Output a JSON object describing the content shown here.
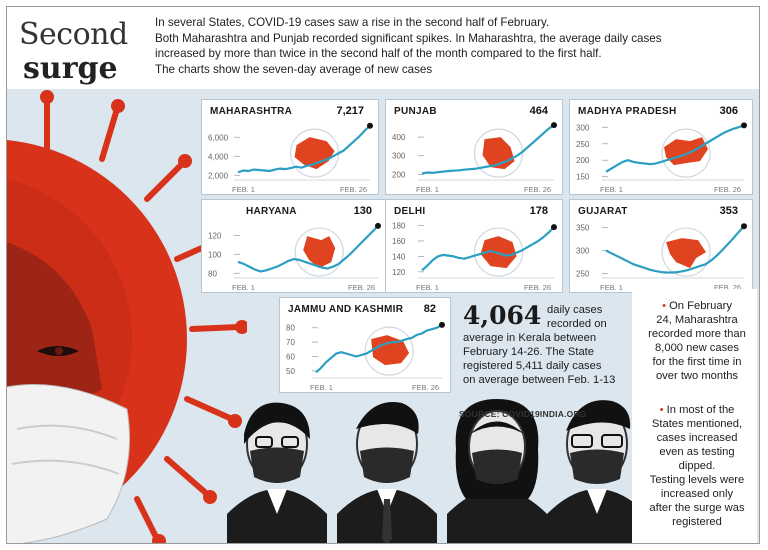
{
  "header": {
    "title_line1": "Second",
    "title_line2": "surge",
    "intro_lines": [
      "In several States, COVID-19 cases saw a rise in the second half of February.",
      "Both Maharashtra and Punjab recorded significant spikes. In Maharashtra, the average daily cases",
      "increased by more than twice in the second half of the month compared to the first half.",
      "The charts show the seven-day average of new cases"
    ]
  },
  "colors": {
    "line": "#2b9fc2",
    "map": "#e0431f",
    "virus": "#d8331a",
    "background": "#dbe6ef",
    "point": "#111111"
  },
  "chart_data": [
    {
      "type": "line",
      "name": "MAHARASHTRA",
      "end_value_label": "7,217",
      "x_start_label": "FEB. 1",
      "x_end_label": "FEB. 26",
      "yticks": [
        "6,000",
        "4,000",
        "2,000"
      ],
      "ytick_values": [
        6000,
        4000,
        2000
      ],
      "ylim": [
        1500,
        7400
      ],
      "values": [
        2300,
        2500,
        2450,
        2600,
        2550,
        2500,
        2450,
        2600,
        2700,
        2650,
        2750,
        2900,
        2800,
        3000,
        3100,
        3300,
        3500,
        3700,
        4000,
        4300,
        4600,
        5100,
        5600,
        6100,
        6700,
        7217
      ]
    },
    {
      "type": "line",
      "name": "PUNJAB",
      "end_value_label": "464",
      "x_start_label": "FEB. 1",
      "x_end_label": "FEB. 26",
      "yticks": [
        "400",
        "300",
        "200"
      ],
      "ytick_values": [
        400,
        300,
        200
      ],
      "ylim": [
        170,
        470
      ],
      "values": [
        205,
        210,
        208,
        212,
        215,
        218,
        220,
        222,
        225,
        228,
        230,
        235,
        240,
        245,
        250,
        260,
        270,
        285,
        300,
        320,
        345,
        370,
        395,
        420,
        445,
        464
      ]
    },
    {
      "type": "line",
      "name": "MADHYA PRADESH",
      "end_value_label": "306",
      "x_start_label": "FEB. 1",
      "x_end_label": "FEB. 26",
      "yticks": [
        "300",
        "250",
        "200",
        "150"
      ],
      "ytick_values": [
        300,
        250,
        200,
        150
      ],
      "ylim": [
        140,
        310
      ],
      "values": [
        165,
        175,
        185,
        195,
        200,
        195,
        192,
        190,
        188,
        190,
        195,
        200,
        205,
        210,
        215,
        222,
        230,
        240,
        250,
        260,
        270,
        280,
        288,
        295,
        300,
        306
      ]
    },
    {
      "type": "line",
      "name": "HARYANA",
      "end_value_label": "130",
      "x_start_label": "FEB. 1",
      "x_end_label": "FEB. 26",
      "yticks": [
        "120",
        "100",
        "80"
      ],
      "ytick_values": [
        120,
        100,
        80
      ],
      "ylim": [
        75,
        132
      ],
      "values": [
        92,
        90,
        87,
        84,
        82,
        83,
        85,
        87,
        90,
        93,
        95,
        94,
        92,
        90,
        88,
        86,
        85,
        87,
        90,
        95,
        100,
        106,
        112,
        118,
        124,
        130
      ]
    },
    {
      "type": "line",
      "name": "DELHI",
      "end_value_label": "178",
      "x_start_label": "FEB. 1",
      "x_end_label": "FEB. 26",
      "yticks": [
        "180",
        "160",
        "140",
        "120"
      ],
      "ytick_values": [
        180,
        160,
        140,
        120
      ],
      "ylim": [
        112,
        182
      ],
      "values": [
        122,
        128,
        135,
        140,
        142,
        141,
        140,
        138,
        137,
        139,
        141,
        143,
        145,
        147,
        145,
        143,
        141,
        142,
        145,
        148,
        152,
        156,
        160,
        165,
        171,
        178
      ]
    },
    {
      "type": "line",
      "name": "GUJARAT",
      "end_value_label": "353",
      "x_start_label": "FEB. 1",
      "x_end_label": "FEB. 26",
      "yticks": [
        "350",
        "300",
        "250"
      ],
      "ytick_values": [
        350,
        300,
        250
      ],
      "ylim": [
        240,
        358
      ],
      "values": [
        300,
        294,
        288,
        282,
        276,
        270,
        266,
        262,
        258,
        255,
        253,
        252,
        252,
        253,
        255,
        258,
        262,
        266,
        270,
        278,
        288,
        300,
        313,
        326,
        340,
        353
      ]
    },
    {
      "type": "line",
      "name": "JAMMU AND KASHMIR",
      "end_value_label": "82",
      "x_start_label": "FEB. 1",
      "x_end_label": "FEB. 26",
      "yticks": [
        "80",
        "70",
        "60",
        "50"
      ],
      "ytick_values": [
        80,
        70,
        60,
        50
      ],
      "ylim": [
        45,
        84
      ],
      "values": [
        49,
        52,
        56,
        59,
        62,
        63,
        62,
        61,
        60,
        61,
        62,
        64,
        66,
        68,
        69,
        70,
        70,
        71,
        72,
        73,
        75,
        76,
        78,
        79,
        80,
        82
      ]
    }
  ],
  "kerala": {
    "big_number": "4,064",
    "lines": [
      "daily cases",
      "recorded on",
      "average in Kerala between",
      "February 14-26. The State",
      "registered 5,411 daily cases",
      "on average between Feb. 1-13"
    ]
  },
  "source": "SOURCE: COVID19INDIA.ORG",
  "notes": [
    {
      "bullet": "•",
      "lines": [
        "On February",
        "24, Maharashtra",
        "recorded more than",
        "8,000 new cases",
        "for the first time in",
        "over two months"
      ]
    },
    {
      "bullet": "•",
      "lines": [
        "In most of the",
        "States mentioned,",
        "cases increased",
        "even as testing",
        "dipped.",
        "Testing levels were",
        "increased only",
        "after the surge was",
        "registered"
      ]
    }
  ]
}
